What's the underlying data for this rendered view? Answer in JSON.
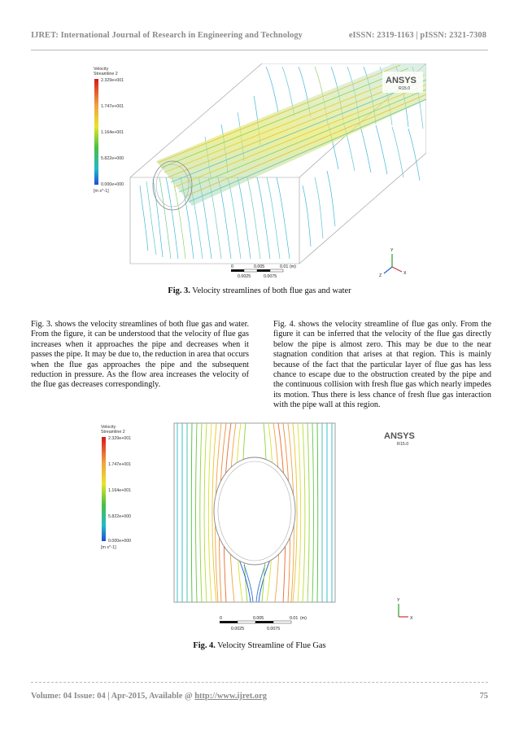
{
  "header": {
    "journal": "IJRET: International Journal of Research in Engineering and Technology",
    "issn": "eISSN: 2319-1163 | pISSN: 2321-7308"
  },
  "figure3": {
    "legend": {
      "title_line1": "Velocity",
      "title_line2": "Streamline 2",
      "ticks": [
        "2.329e+001",
        "1.747e+001",
        "1.164e+001",
        "5.822e+000",
        "0.000e+000"
      ],
      "unit": "[m s^-1]"
    },
    "brand": "ANSYS",
    "version": "R15.0",
    "scale": {
      "top_labels": [
        "0",
        "0.005",
        "0.01",
        "(m)"
      ],
      "bottom_labels": [
        "0.0025",
        "0.0075"
      ]
    },
    "axes": {
      "y": "Y",
      "x": "X",
      "z": "Z"
    },
    "caption_prefix": "Fig. 3.",
    "caption_text": "Velocity streamlines of both flue gas and water"
  },
  "paragraph_left": "Fig. 3. shows the velocity streamlines of both flue gas and water. From the figure, it can be understood that the velocity of flue gas increases when it approaches the pipe and decreases when it passes the pipe. It may be due to, the reduction in area that occurs when the flue gas approaches the pipe and the subsequent reduction in pressure. As the flow area increases the velocity of the flue gas decreases correspondingly.",
  "paragraph_right": "Fig. 4. shows the velocity streamline of flue gas only. From the figure it can be inferred that the velocity of the flue gas directly below the pipe is almost zero. This may be due to the near stagnation condition that arises at that region. This is mainly because of the fact that the particular layer of flue gas has less chance to escape due to the obstruction created by the pipe and the continuous collision with fresh flue gas which nearly impedes its motion. Thus there is less chance of fresh flue gas interaction with the pipe wall at this region.",
  "figure4": {
    "legend": {
      "title_line1": "Velocity",
      "title_line2": "Streamline 2",
      "ticks": [
        "2.329e+001",
        "1.747e+001",
        "1.164e+001",
        "5.822e+000",
        "0.000e+000"
      ],
      "unit": "[m s^-1]"
    },
    "brand": "ANSYS",
    "version": "R15.0",
    "scale": {
      "top_labels": [
        "0",
        "0.005",
        "0.01",
        "(m)"
      ],
      "bottom_labels": [
        "0.0025",
        "0.0075"
      ]
    },
    "axes": {
      "y": "Y",
      "x": "X"
    },
    "caption_prefix": "Fig. 4.",
    "caption_text": "Velocity Streamline of Flue Gas"
  },
  "footer": {
    "volume": "Volume: 04 Issue: 04 | Apr-2015, Available @",
    "url": "http://www.ijret.org",
    "page": "75"
  },
  "colors": {
    "header_gray": "#8a8a8a",
    "colormap": [
      "#d7191c",
      "#f1a340",
      "#e5e52b",
      "#48c040",
      "#23b9c9",
      "#1f4fd1"
    ]
  }
}
